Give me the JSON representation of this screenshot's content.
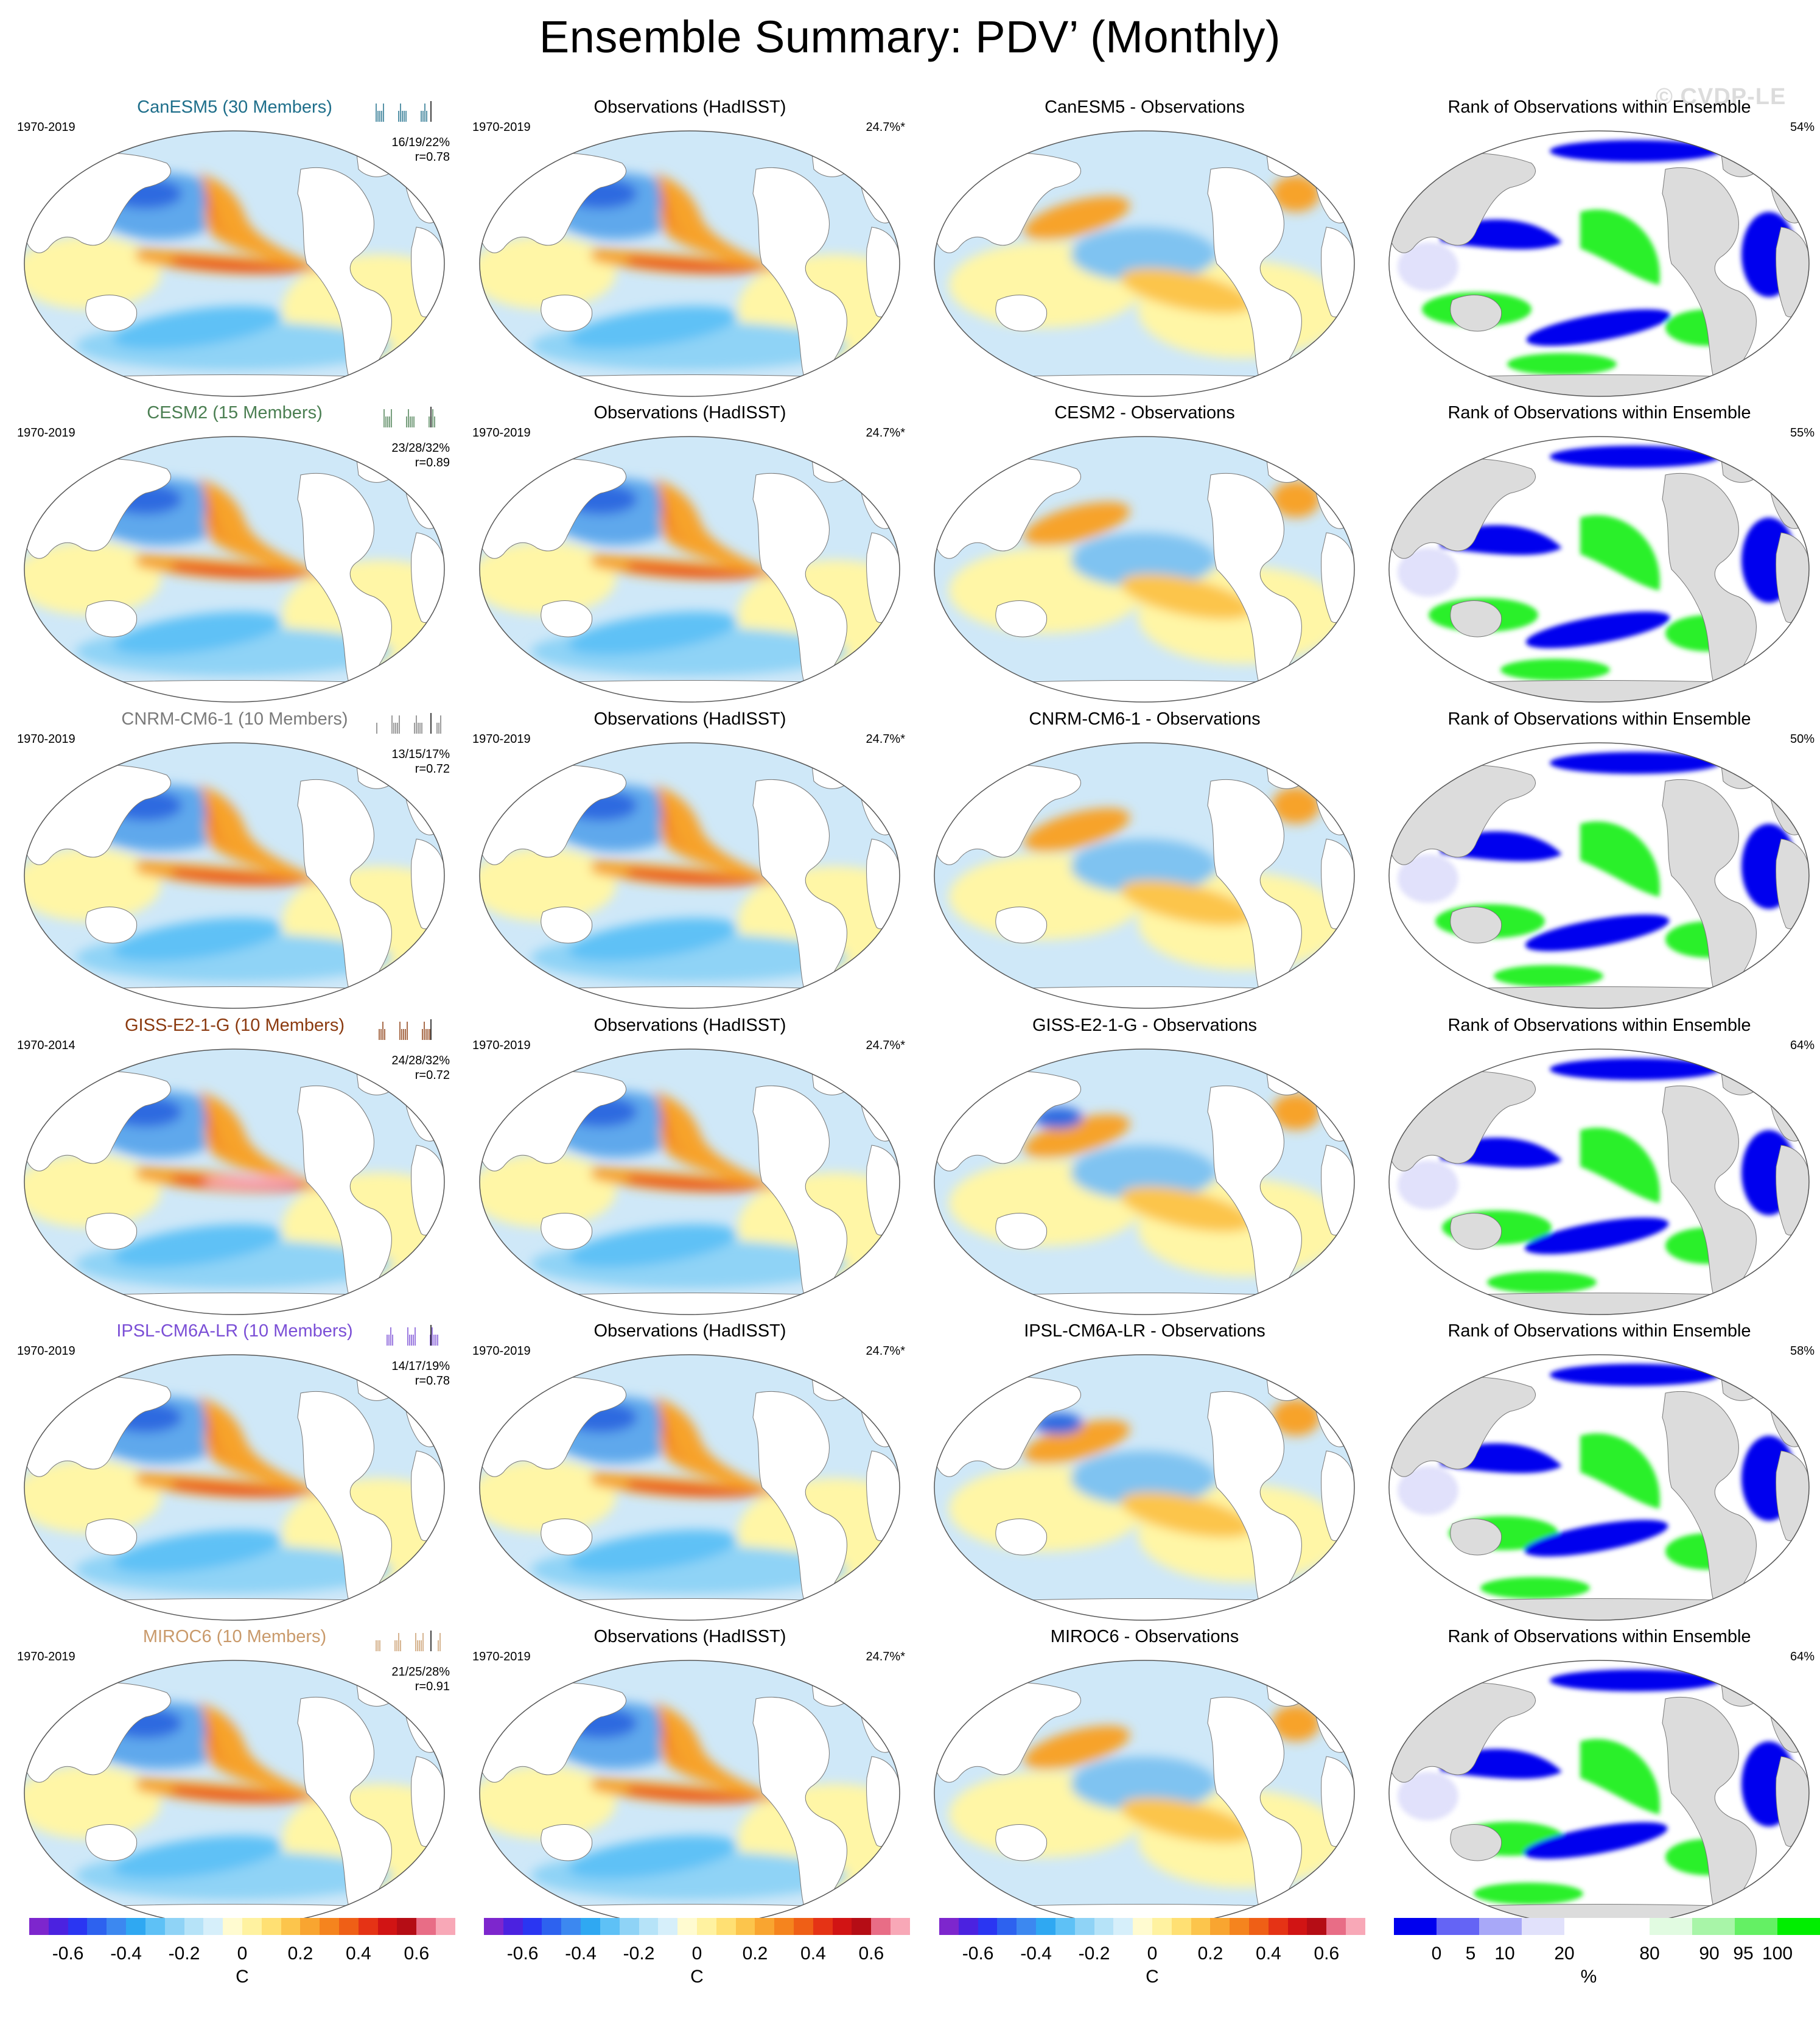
{
  "title": "Ensemble Summary: PDV’ (Monthly)",
  "watermark": "© CVDP-LE",
  "colors": {
    "blue_deep": "#3c00a8",
    "blue": "#2f6be0",
    "blue_light": "#9fd2f3",
    "blue_pale": "#cfe8f8",
    "yellow": "#fff6a6",
    "orange": "#f7a32a",
    "red": "#e5221c",
    "rank_low": "#0000ee",
    "rank_mid": "#2cf02c",
    "land_gray": "#dcdcdc"
  },
  "rows": [
    {
      "model": {
        "title": "CanESM5 (30 Members)",
        "color": "#1f6f8b",
        "period": "1970-2019",
        "stats": "16/19/22%",
        "r": "r=0.78"
      },
      "obs": {
        "title": "Observations (HadISST)",
        "period": "1970-2019",
        "pct": "24.7%*"
      },
      "diff": {
        "title": "CanESM5 - Observations"
      },
      "rank": {
        "title": "Rank of Observations within Ensemble",
        "pct": "54%"
      }
    },
    {
      "model": {
        "title": "CESM2 (15 Members)",
        "color": "#4b7f52",
        "period": "1970-2019",
        "stats": "23/28/32%",
        "r": "r=0.89"
      },
      "obs": {
        "title": "Observations (HadISST)",
        "period": "1970-2019",
        "pct": "24.7%*"
      },
      "diff": {
        "title": "CESM2 - Observations"
      },
      "rank": {
        "title": "Rank of Observations within Ensemble",
        "pct": "55%"
      }
    },
    {
      "model": {
        "title": "CNRM-CM6-1 (10 Members)",
        "color": "#7a7a7a",
        "period": "1970-2019",
        "stats": "13/15/17%",
        "r": "r=0.72"
      },
      "obs": {
        "title": "Observations (HadISST)",
        "period": "1970-2019",
        "pct": "24.7%*"
      },
      "diff": {
        "title": "CNRM-CM6-1 - Observations"
      },
      "rank": {
        "title": "Rank of Observations within Ensemble",
        "pct": "50%"
      }
    },
    {
      "model": {
        "title": "GISS-E2-1-G (10 Members)",
        "color": "#8b3a0f",
        "period": "1970-2014",
        "stats": "24/28/32%",
        "r": "r=0.72"
      },
      "obs": {
        "title": "Observations (HadISST)",
        "period": "1970-2019",
        "pct": "24.7%*"
      },
      "diff": {
        "title": "GISS-E2-1-G - Observations"
      },
      "rank": {
        "title": "Rank of Observations within Ensemble",
        "pct": "64%"
      }
    },
    {
      "model": {
        "title": "IPSL-CM6A-LR (10 Members)",
        "color": "#7b4fd6",
        "period": "1970-2019",
        "stats": "14/17/19%",
        "r": "r=0.78"
      },
      "obs": {
        "title": "Observations (HadISST)",
        "period": "1970-2019",
        "pct": "24.7%*"
      },
      "diff": {
        "title": "IPSL-CM6A-LR - Observations"
      },
      "rank": {
        "title": "Rank of Observations within Ensemble",
        "pct": "58%"
      }
    },
    {
      "model": {
        "title": "MIROC6 (10 Members)",
        "color": "#c99a6b",
        "period": "1970-2019",
        "stats": "21/25/28%",
        "r": "r=0.91"
      },
      "obs": {
        "title": "Observations (HadISST)",
        "period": "1970-2019",
        "pct": "24.7%*"
      },
      "diff": {
        "title": "MIROC6 - Observations"
      },
      "rank": {
        "title": "Rank of Observations within Ensemble",
        "pct": "64%"
      }
    }
  ],
  "colorbars": {
    "temp": {
      "ticks": [
        "-0.6",
        "-0.4",
        "-0.2",
        "0",
        "0.2",
        "0.4",
        "0.6"
      ],
      "unit": "C",
      "swatches": [
        "#7d26cd",
        "#4b22e0",
        "#2a36f2",
        "#2d62ef",
        "#3c88f0",
        "#2fa8f2",
        "#5ec1f6",
        "#8fd3f6",
        "#b6e3f8",
        "#d6effa",
        "#fffbd0",
        "#fff2a0",
        "#ffe073",
        "#fcc54c",
        "#f9a530",
        "#f5841e",
        "#ef5f16",
        "#e53315",
        "#d11414",
        "#b50d15",
        "#e86d86",
        "#f8a8b7"
      ]
    },
    "rank": {
      "ticks": [
        "0",
        "5",
        "10",
        "20",
        "80",
        "90",
        "95",
        "100"
      ],
      "unit": "%",
      "swatches": [
        "#0000ee",
        "#6464f5",
        "#a8a8f8",
        "#e1e1fb",
        "#ffffff",
        "#ffffff",
        "#e1fbe1",
        "#a8f5a8",
        "#64f064",
        "#00ee00"
      ]
    }
  }
}
